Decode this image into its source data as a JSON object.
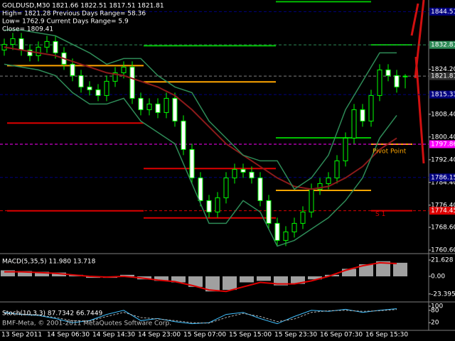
{
  "header": {
    "lines": [
      "GOLDUSD,M30  1821.66 1822.51 1817.51 1821.81",
      "High= 1821.28    Previous Days Range= 58.36",
      "Low= 1762.9    Current Days Range= 5.9",
      "Close= 1809.41"
    ]
  },
  "footer": "BMF-Meta, © 2001-2011 MetaQuotes Software Corp.",
  "chart_data": [
    {
      "type": "candlestick",
      "up_color": "#00ff00",
      "down_color": "#ffffff",
      "ylim": [
        1759.6,
        1848.6
      ],
      "yticks": [
        {
          "value": 1824.2,
          "label": "1824.20"
        },
        {
          "value": 1808.4,
          "label": "1808.40"
        },
        {
          "value": 1800.4,
          "label": "1800.40"
        },
        {
          "value": 1792.4,
          "label": "1792.40"
        },
        {
          "value": 1784.4,
          "label": "1784.40"
        },
        {
          "value": 1776.4,
          "label": "1776.40"
        },
        {
          "value": 1768.6,
          "label": "1768.60"
        },
        {
          "value": 1760.6,
          "label": "1760.60"
        }
      ],
      "x_labels": [
        "13 Sep 2011",
        "14 Sep 06:30",
        "14 Sep 14:30",
        "14 Sep 23:00",
        "15 Sep 07:00",
        "15 Sep 15:00",
        "15 Sep 23:30",
        "16 Sep 07:30",
        "16 Sep 15:30"
      ],
      "open": [
        1831,
        1833,
        1835,
        1831,
        1829,
        1832,
        1834,
        1830,
        1826,
        1822,
        1818,
        1817,
        1815,
        1820,
        1823,
        1825,
        1814,
        1810,
        1812,
        1809,
        1814,
        1806,
        1796,
        1786,
        1778,
        1774,
        1779,
        1786,
        1789,
        1788,
        1786,
        1778,
        1770,
        1764,
        1767,
        1770,
        1774,
        1782,
        1784,
        1786,
        1792,
        1800,
        1810,
        1806,
        1815,
        1824,
        1822,
        1821.66
      ],
      "high": [
        1835,
        1837,
        1837,
        1833,
        1834,
        1836,
        1836,
        1832,
        1828,
        1824,
        1820,
        1819,
        1822,
        1825,
        1827,
        1827,
        1816,
        1814,
        1814,
        1816,
        1816,
        1808,
        1798,
        1788,
        1780,
        1781,
        1788,
        1791,
        1791,
        1790,
        1788,
        1780,
        1772,
        1769,
        1772,
        1776,
        1784,
        1786,
        1788,
        1794,
        1802,
        1812,
        1812,
        1817,
        1826,
        1826,
        1824,
        1822.51
      ],
      "low": [
        1829,
        1831,
        1829,
        1827,
        1827,
        1830,
        1828,
        1824,
        1820,
        1816,
        1815,
        1813,
        1813,
        1818,
        1821,
        1812,
        1808,
        1808,
        1807,
        1807,
        1804,
        1794,
        1784,
        1776,
        1772,
        1772,
        1777,
        1784,
        1786,
        1784,
        1776,
        1768,
        1762,
        1762,
        1765,
        1768,
        1772,
        1780,
        1782,
        1784,
        1790,
        1798,
        1804,
        1804,
        1813,
        1820,
        1816,
        1817.51
      ],
      "close": [
        1833,
        1835,
        1831,
        1829,
        1832,
        1834,
        1830,
        1826,
        1822,
        1818,
        1817,
        1815,
        1820,
        1823,
        1825,
        1814,
        1810,
        1812,
        1809,
        1814,
        1806,
        1796,
        1786,
        1778,
        1774,
        1779,
        1786,
        1789,
        1788,
        1786,
        1778,
        1770,
        1764,
        1767,
        1770,
        1774,
        1782,
        1784,
        1786,
        1792,
        1800,
        1810,
        1806,
        1815,
        1824,
        1822,
        1818,
        1821.81
      ],
      "overlays": [
        {
          "color": "#8b1a1a",
          "values": [
            1832,
            1831,
            1830,
            1829,
            1827,
            1825,
            1823,
            1822,
            1820,
            1818,
            1815,
            1810,
            1804,
            1798,
            1794,
            1790,
            1786,
            1783,
            1782,
            1783,
            1786,
            1790,
            1796,
            1800
          ]
        },
        {
          "color": "#2e8b57",
          "values": [
            1838,
            1838,
            1837,
            1836,
            1833,
            1830,
            1826,
            1828,
            1828,
            1822,
            1818,
            1816,
            1806,
            1800,
            1794,
            1792,
            1792,
            1782,
            1786,
            1794,
            1810,
            1820,
            1830,
            1830
          ]
        },
        {
          "color": "#2e8b57",
          "values": [
            1826,
            1825,
            1824,
            1822,
            1816,
            1812,
            1812,
            1814,
            1806,
            1802,
            1798,
            1784,
            1770,
            1770,
            1778,
            1774,
            1762,
            1764,
            1768,
            1772,
            1778,
            1786,
            1800,
            1808
          ]
        }
      ],
      "pivot_steps": [
        {
          "color": "#ffa500",
          "values": [
            1825.5,
            1819.8,
            1781.6,
            1797.86
          ]
        },
        {
          "color": "#00c000",
          "values": [
            null,
            1832.5,
            1800.1,
            1832.81
          ]
        },
        {
          "color": "#00c000",
          "values": [
            null,
            null,
            1848,
            null
          ]
        },
        {
          "color": "#dd0000",
          "values": [
            1805.3,
            1789.3,
            null,
            1774.45
          ]
        },
        {
          "color": "#dd0000",
          "values": [
            1774.4,
            1771.9,
            null,
            null
          ]
        }
      ],
      "levels": [
        {
          "value": 1844.51,
          "label": "1844.51",
          "color": "#000080"
        },
        {
          "value": 1832.81,
          "label": "1832.81",
          "color": "#2e8b57"
        },
        {
          "value": 1821.81,
          "label": "1821.81",
          "color": "#303030"
        },
        {
          "value": 1815.33,
          "label": "1815.33",
          "color": "#000080"
        },
        {
          "value": 1797.86,
          "label": "1797.86",
          "color": "#ff00ff"
        },
        {
          "value": 1786.15,
          "label": "1786.15",
          "color": "#000080"
        },
        {
          "value": 1774.45,
          "label": "1774.45",
          "color": "#dd0000"
        }
      ],
      "annotations": [
        "Pivot Point",
        "S 1"
      ]
    },
    {
      "type": "macd",
      "title": "MACD(5,35,5) 11.980 13.718",
      "ylim": [
        -33,
        29.2
      ],
      "yticks": [
        21.628,
        {
          "value": 0,
          "label": "0.00"
        },
        -23.395
      ],
      "series": [
        {
          "color": "#a0a0a0",
          "values": [
            8,
            7,
            6,
            5,
            2,
            -2,
            -2,
            2,
            -4,
            -6,
            -8,
            -14,
            -20,
            -18,
            -8,
            -6,
            -12,
            -10,
            -4,
            2,
            10,
            16,
            20,
            18
          ]
        },
        {
          "color": "#dd0000",
          "values": [
            6,
            6,
            5,
            4,
            2,
            0,
            -1,
            0,
            -2,
            -5,
            -7,
            -12,
            -18,
            -20,
            -14,
            -8,
            -10,
            -10,
            -6,
            0,
            8,
            14,
            18,
            17
          ]
        }
      ]
    },
    {
      "type": "line",
      "title": "Stoch(10,3,3) 87.7342 66.7449",
      "ylim": [
        0,
        100
      ],
      "yticks": [
        100,
        80,
        20
      ],
      "series": [
        {
          "color": "#40c0ff",
          "values": [
            70,
            60,
            55,
            40,
            20,
            30,
            60,
            80,
            30,
            40,
            25,
            15,
            20,
            60,
            70,
            40,
            15,
            50,
            80,
            75,
            85,
            70,
            80,
            88
          ]
        },
        {
          "color": "#b0b0b0",
          "values": [
            65,
            62,
            57,
            45,
            30,
            28,
            50,
            70,
            45,
            38,
            30,
            20,
            18,
            45,
            65,
            50,
            25,
            38,
            70,
            78,
            80,
            75,
            78,
            84
          ]
        }
      ]
    }
  ]
}
